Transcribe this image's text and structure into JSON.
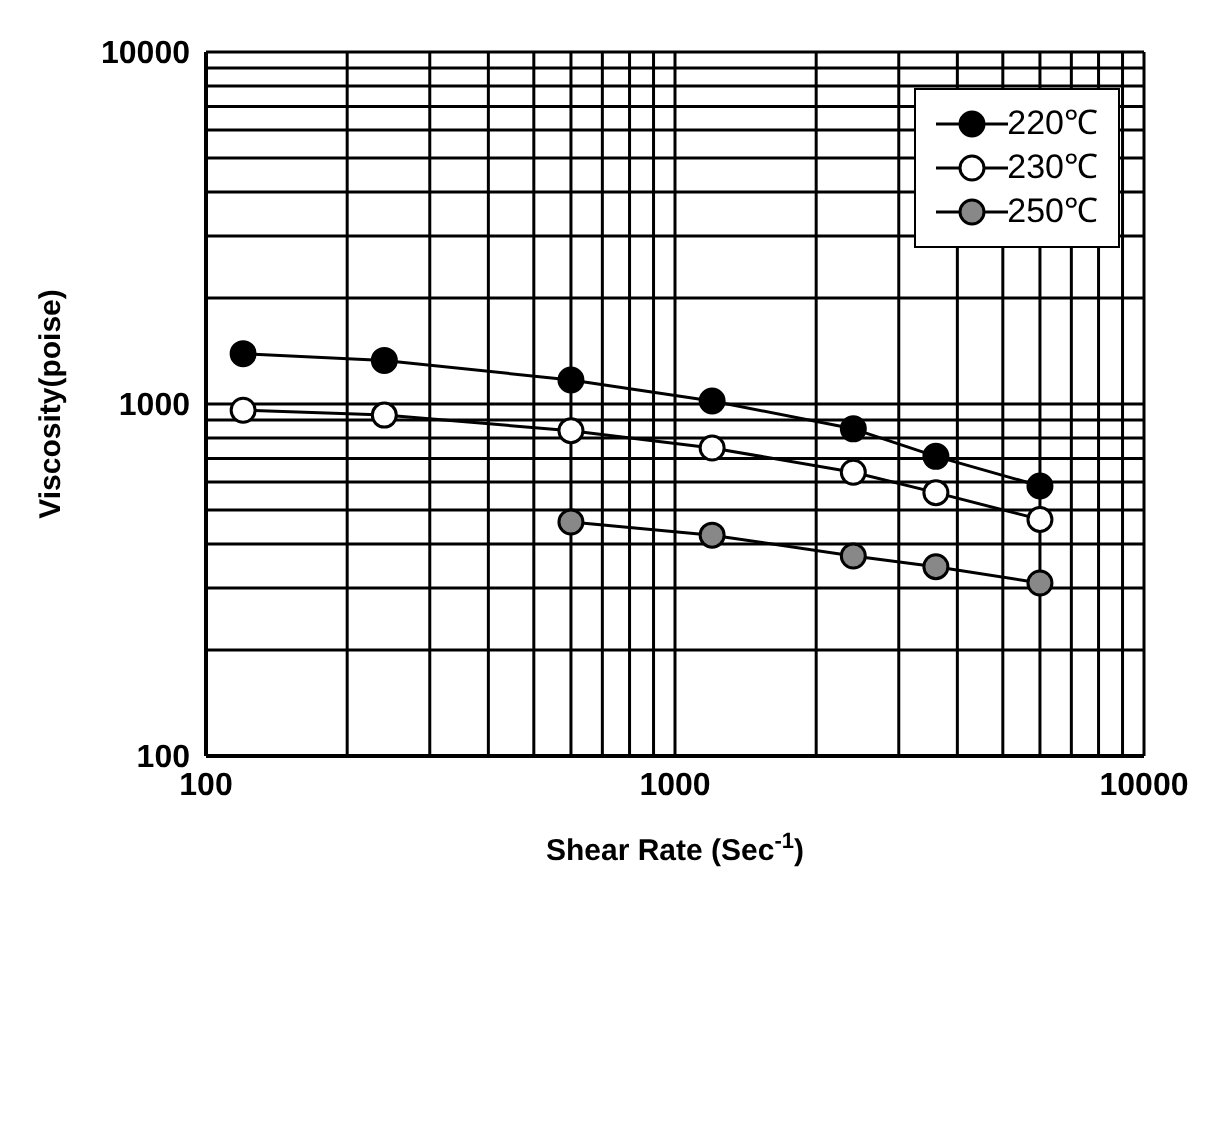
{
  "chart_data": {
    "type": "line",
    "xlabel": "Shear Rate (Sec$^{-1}$)",
    "ylabel": "Viscosity(poise)",
    "x": [
      120,
      240,
      600,
      1200,
      2400,
      3600,
      6000
    ],
    "series": [
      {
        "name": "220℃",
        "color": "#000000",
        "values": [
          1390,
          1330,
          1170,
          1020,
          850,
          710,
          585
        ]
      },
      {
        "name": "230℃",
        "color": "#ffffff",
        "values": [
          960,
          930,
          840,
          750,
          640,
          560,
          470
        ]
      },
      {
        "name": "250℃",
        "color": "#888888",
        "values": [
          null,
          null,
          462,
          424,
          370,
          345,
          310
        ]
      }
    ],
    "log": "xy",
    "xlim": [
      100,
      10000
    ],
    "ylim": [
      100,
      10000
    ],
    "xticks": [
      100,
      {
        "value": 200,
        "label": null
      },
      {
        "value": 300,
        "label": null
      },
      {
        "value": 400,
        "label": null
      },
      {
        "value": 500,
        "label": null
      },
      {
        "value": 600,
        "label": null
      },
      {
        "value": 700,
        "label": null
      },
      {
        "value": 800,
        "label": null
      },
      {
        "value": 900,
        "label": null
      },
      1000,
      {
        "value": 2000,
        "label": null
      },
      {
        "value": 3000,
        "label": null
      },
      {
        "value": 4000,
        "label": null
      },
      {
        "value": 5000,
        "label": null
      },
      {
        "value": 6000,
        "label": null
      },
      {
        "value": 7000,
        "label": null
      },
      {
        "value": 8000,
        "label": null
      },
      {
        "value": 9000,
        "label": null
      },
      10000
    ],
    "yticks": [
      100,
      {
        "value": 200,
        "label": null
      },
      {
        "value": 300,
        "label": null
      },
      {
        "value": 400,
        "label": null
      },
      {
        "value": 500,
        "label": null
      },
      {
        "value": 600,
        "label": null
      },
      {
        "value": 700,
        "label": null
      },
      {
        "value": 800,
        "label": null
      },
      {
        "value": 900,
        "label": null
      },
      1000,
      {
        "value": 2000,
        "label": null
      },
      {
        "value": 3000,
        "label": null
      },
      {
        "value": 4000,
        "label": null
      },
      {
        "value": 5000,
        "label": null
      },
      {
        "value": 6000,
        "label": null
      },
      {
        "value": 7000,
        "label": null
      },
      {
        "value": 8000,
        "label": null
      },
      {
        "value": 9000,
        "label": null
      },
      10000
    ],
    "grid": true,
    "legend": "top right",
    "marker": "circle",
    "line_style": "solid"
  }
}
